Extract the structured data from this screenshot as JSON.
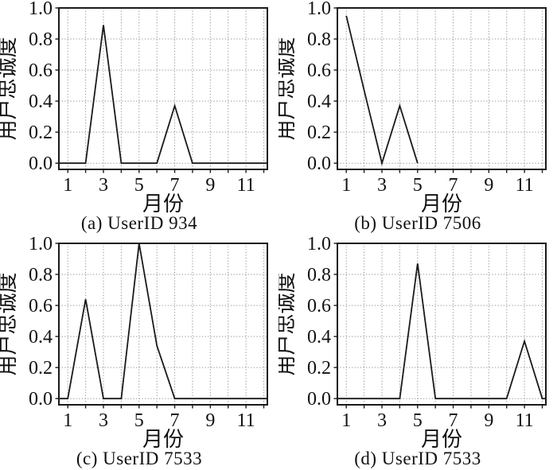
{
  "page": {
    "background": "#ffffff"
  },
  "style": {
    "line_color": "#1a1a1a",
    "frame_color": "#1a1a1a",
    "grid_color": "#8f8f8f",
    "text_color": "#111111"
  },
  "chart_data": [
    {
      "id": "a",
      "type": "line",
      "title": "(a) UserID 934",
      "xlabel": "月份",
      "ylabel": "用户忠诚度",
      "x": [
        1,
        2,
        3,
        4,
        5,
        6,
        7,
        8,
        9,
        10,
        11,
        12
      ],
      "y": [
        0,
        0,
        0.89,
        0,
        0,
        0,
        0.37,
        0,
        0,
        0,
        0,
        0
      ],
      "xlim": [
        0.5,
        12.2
      ],
      "ylim": [
        -0.04,
        1.0
      ],
      "grid": true,
      "extend_line_to_frame": true,
      "xticks": {
        "positions": [
          1,
          2,
          3,
          4,
          5,
          6,
          7,
          8,
          9,
          10,
          11,
          12
        ],
        "labels": [
          "1",
          "",
          "3",
          "",
          "5",
          "",
          "7",
          "",
          "9",
          "",
          "11",
          ""
        ]
      },
      "yticks": {
        "positions": [
          0,
          0.2,
          0.4,
          0.6,
          0.8,
          1.0
        ],
        "labels": [
          "0.0",
          "0.2",
          "0.4",
          "0.6",
          "0.8",
          "1.0"
        ]
      }
    },
    {
      "id": "b",
      "type": "line",
      "title": "(b) UserID 7506",
      "xlabel": "月份",
      "ylabel": "用户忠诚度",
      "x": [
        1,
        2,
        3,
        4,
        5
      ],
      "y": [
        0.95,
        0.47,
        0,
        0.37,
        0
      ],
      "xlim": [
        0.5,
        12.2
      ],
      "ylim": [
        -0.04,
        1.0
      ],
      "grid": true,
      "extend_line_to_frame": false,
      "xticks": {
        "positions": [
          1,
          2,
          3,
          4,
          5,
          6,
          7,
          8,
          9,
          10,
          11,
          12
        ],
        "labels": [
          "1",
          "",
          "3",
          "",
          "5",
          "",
          "7",
          "",
          "9",
          "",
          "11",
          ""
        ]
      },
      "yticks": {
        "positions": [
          0,
          0.2,
          0.4,
          0.6,
          0.8,
          1.0
        ],
        "labels": [
          "0.0",
          "0.2",
          "0.4",
          "0.6",
          "0.8",
          "1.0"
        ]
      }
    },
    {
      "id": "c",
      "type": "line",
      "title": "(c) UserID 7533",
      "xlabel": "月份",
      "ylabel": "用户忠诚度",
      "x": [
        1,
        2,
        3,
        4,
        5,
        6,
        7,
        8,
        9,
        10,
        11,
        12
      ],
      "y": [
        0,
        0.64,
        0,
        0,
        1.0,
        0.34,
        0,
        0,
        0,
        0,
        0,
        0
      ],
      "xlim": [
        0.5,
        12.2
      ],
      "ylim": [
        -0.04,
        1.0
      ],
      "grid": true,
      "extend_line_to_frame": true,
      "xticks": {
        "positions": [
          1,
          2,
          3,
          4,
          5,
          6,
          7,
          8,
          9,
          10,
          11,
          12
        ],
        "labels": [
          "1",
          "",
          "3",
          "",
          "5",
          "",
          "7",
          "",
          "9",
          "",
          "11",
          ""
        ]
      },
      "yticks": {
        "positions": [
          0,
          0.2,
          0.4,
          0.6,
          0.8,
          1.0
        ],
        "labels": [
          "0.0",
          "0.2",
          "0.4",
          "0.6",
          "0.8",
          "1.0"
        ]
      }
    },
    {
      "id": "d",
      "type": "line",
      "title": "(d) UserID 7533",
      "xlabel": "月份",
      "ylabel": "用户忠诚度",
      "x": [
        1,
        2,
        3,
        4,
        5,
        6,
        7,
        8,
        9,
        10,
        11,
        12
      ],
      "y": [
        0,
        0,
        0,
        0,
        0.87,
        0,
        0,
        0,
        0,
        0,
        0.37,
        0
      ],
      "xlim": [
        0.5,
        12.2
      ],
      "ylim": [
        -0.04,
        1.0
      ],
      "grid": true,
      "extend_line_to_frame": true,
      "xticks": {
        "positions": [
          1,
          2,
          3,
          4,
          5,
          6,
          7,
          8,
          9,
          10,
          11,
          12
        ],
        "labels": [
          "1",
          "",
          "3",
          "",
          "5",
          "",
          "7",
          "",
          "9",
          "",
          "11",
          ""
        ]
      },
      "yticks": {
        "positions": [
          0,
          0.2,
          0.4,
          0.6,
          0.8,
          1.0
        ],
        "labels": [
          "0.0",
          "0.2",
          "0.4",
          "0.6",
          "0.8",
          "1.0"
        ]
      }
    }
  ]
}
